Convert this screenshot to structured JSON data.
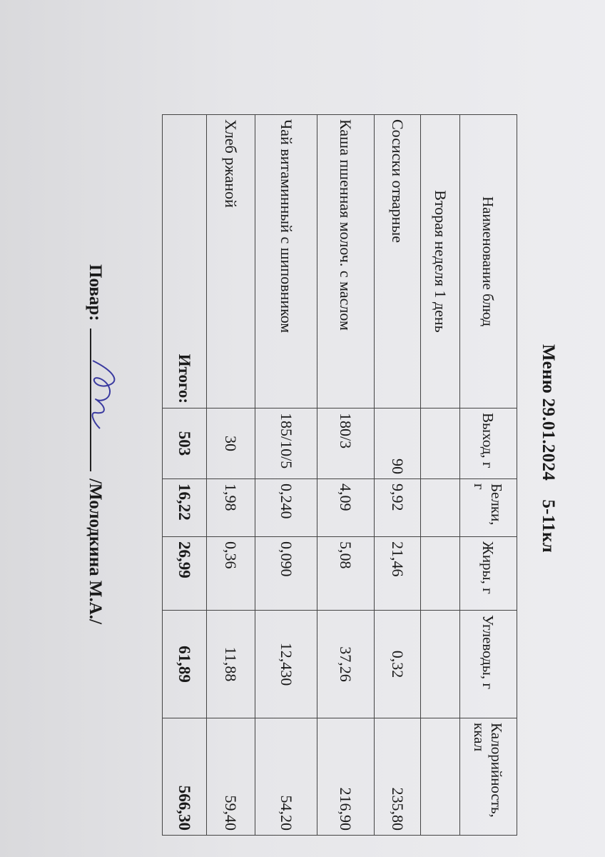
{
  "title": "Меню 29.01.2024    5-11кл",
  "table": {
    "headers": [
      "Наименование блюд",
      "Выход, г",
      "Белки, г",
      "Жиры, г",
      "Углеводы, г",
      "Калорийность, ккал"
    ],
    "section": "Вторая неделя 1 день",
    "rows": [
      [
        "Сосиски отварные",
        "90",
        "9,92",
        "21,46",
        "0,32",
        "235,80"
      ],
      [
        "Каша пшенная молоч. с маслом",
        "180/3",
        "4,09",
        "5,08",
        "37,26",
        "216,90"
      ],
      [
        "Чай витаминный с шиповником",
        "185/10/5",
        "0,240",
        "0,090",
        "12,430",
        "54,20"
      ],
      [
        "Хлеб ржаной",
        "30",
        "1,98",
        "0,36",
        "11,88",
        "59,40"
      ]
    ],
    "total": [
      "Итого:",
      "503",
      "16,22",
      "26,99",
      "61,89",
      "566,30"
    ]
  },
  "signature": {
    "label": "Повар:",
    "name": "/Молодкина М.А./"
  }
}
